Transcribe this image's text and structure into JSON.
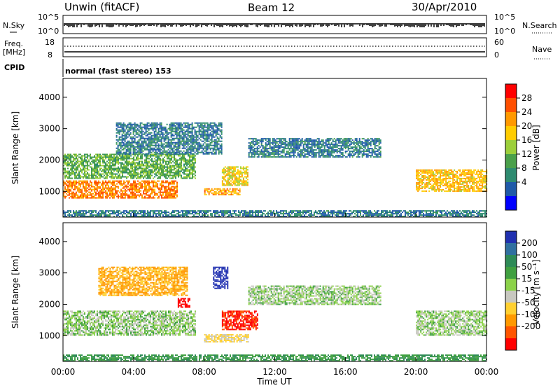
{
  "header": {
    "radar": "Unwin (fitACF)",
    "beam": "Beam 12",
    "date": "30/Apr/2010"
  },
  "top_panels": {
    "nsky_label": "N.Sky",
    "nsearch_label": "N.Search",
    "nsky_ticks": [
      "10^5",
      "10^0"
    ],
    "nsearch_ticks": [
      "10^5",
      "10^0"
    ],
    "freq_label_line1": "Freq.",
    "freq_label_line2": "[MHz]",
    "freq_ticks": [
      "18",
      "8"
    ],
    "nave_label": "Nave",
    "nave_ticks": [
      "60",
      "0"
    ],
    "cpid_label": "CPID",
    "cpid_text": "normal (fast stereo) 153"
  },
  "colorbars": {
    "power": {
      "label": "Power [dB]",
      "ticks": [
        "28",
        "24",
        "20",
        "16",
        "12",
        "8",
        "4"
      ],
      "colors": [
        "#ff0000",
        "#ff4f00",
        "#ff9900",
        "#ffcc00",
        "#9ccf3a",
        "#4aa04a",
        "#2e8b70",
        "#1f5aa8",
        "#0000ff"
      ]
    },
    "velocity": {
      "label": "Velocity [m s⁻¹]",
      "ticks": [
        "200",
        "100",
        "50",
        "15",
        "-15",
        "-50",
        "-100",
        "-200"
      ],
      "colors": [
        "#2030b0",
        "#3070a0",
        "#2e8b57",
        "#40a040",
        "#8cd24a",
        "#c8c8c0",
        "#ffd030",
        "#ff9900",
        "#ff5500",
        "#ff0000"
      ]
    }
  },
  "chart_data": [
    {
      "type": "heatmap",
      "panel": "power",
      "ylabel": "Slant Range [km]",
      "xlabel": "Time UT",
      "x_ticks": [
        "00:00",
        "04:00",
        "08:00",
        "12:00",
        "16:00",
        "20:00",
        "00:00"
      ],
      "y_ticks": [
        1000,
        2000,
        3000,
        4000
      ],
      "xlim_hours": [
        0,
        24
      ],
      "ylim_km": [
        180,
        4600
      ],
      "colorbar_range_db": [
        0,
        30
      ],
      "features": [
        {
          "kind": "band",
          "t_start": 0,
          "t_end": 6.5,
          "range_km": [
            800,
            1350
          ],
          "level_db": 24
        },
        {
          "kind": "band",
          "t_start": 0,
          "t_end": 7.5,
          "range_km": [
            1400,
            2200
          ],
          "level_db": 12
        },
        {
          "kind": "band",
          "t_start": 3,
          "t_end": 9,
          "range_km": [
            2200,
            3200
          ],
          "level_db": 6
        },
        {
          "kind": "band",
          "t_start": 9,
          "t_end": 10.5,
          "range_km": [
            1200,
            1800
          ],
          "level_db": 18
        },
        {
          "kind": "band",
          "t_start": 8,
          "t_end": 10,
          "range_km": [
            900,
            1100
          ],
          "level_db": 22
        },
        {
          "kind": "band",
          "t_start": 10.5,
          "t_end": 18,
          "range_km": [
            2100,
            2700
          ],
          "level_db": 6
        },
        {
          "kind": "band",
          "t_start": 20,
          "t_end": 24,
          "range_km": [
            1000,
            1700
          ],
          "level_db": 20
        },
        {
          "kind": "band",
          "t_start": 0,
          "t_end": 24,
          "range_km": [
            200,
            400
          ],
          "level_db": 6
        }
      ]
    },
    {
      "type": "heatmap",
      "panel": "velocity",
      "ylabel": "Slant Range [km]",
      "xlabel": "Time UT",
      "x_ticks": [
        "00:00",
        "04:00",
        "08:00",
        "12:00",
        "16:00",
        "20:00",
        "00:00"
      ],
      "y_ticks": [
        1000,
        2000,
        3000,
        4000
      ],
      "xlim_hours": [
        0,
        24
      ],
      "ylim_km": [
        180,
        4600
      ],
      "colorbar_range_ms": [
        -200,
        200
      ],
      "features": [
        {
          "kind": "band",
          "t_start": 0,
          "t_end": 7.5,
          "range_km": [
            1000,
            1800
          ],
          "velocity_ms": 0
        },
        {
          "kind": "band",
          "t_start": 2,
          "t_end": 7,
          "range_km": [
            2300,
            3200
          ],
          "velocity_ms": -80
        },
        {
          "kind": "band",
          "t_start": 9,
          "t_end": 11,
          "range_km": [
            1200,
            1800
          ],
          "velocity_ms": -180
        },
        {
          "kind": "band",
          "t_start": 8.5,
          "t_end": 9.3,
          "range_km": [
            2500,
            3200
          ],
          "velocity_ms": 200
        },
        {
          "kind": "band",
          "t_start": 6.5,
          "t_end": 7.2,
          "range_km": [
            1900,
            2200
          ],
          "velocity_ms": -200
        },
        {
          "kind": "band",
          "t_start": 8,
          "t_end": 10.5,
          "range_km": [
            800,
            1050
          ],
          "velocity_ms": -40
        },
        {
          "kind": "band",
          "t_start": 10.5,
          "t_end": 18,
          "range_km": [
            2000,
            2600
          ],
          "velocity_ms": 0
        },
        {
          "kind": "band",
          "t_start": 20,
          "t_end": 24,
          "range_km": [
            1000,
            1800
          ],
          "velocity_ms": 0
        },
        {
          "kind": "band",
          "t_start": 0,
          "t_end": 24,
          "range_km": [
            200,
            400
          ],
          "velocity_ms": 30
        }
      ]
    }
  ]
}
